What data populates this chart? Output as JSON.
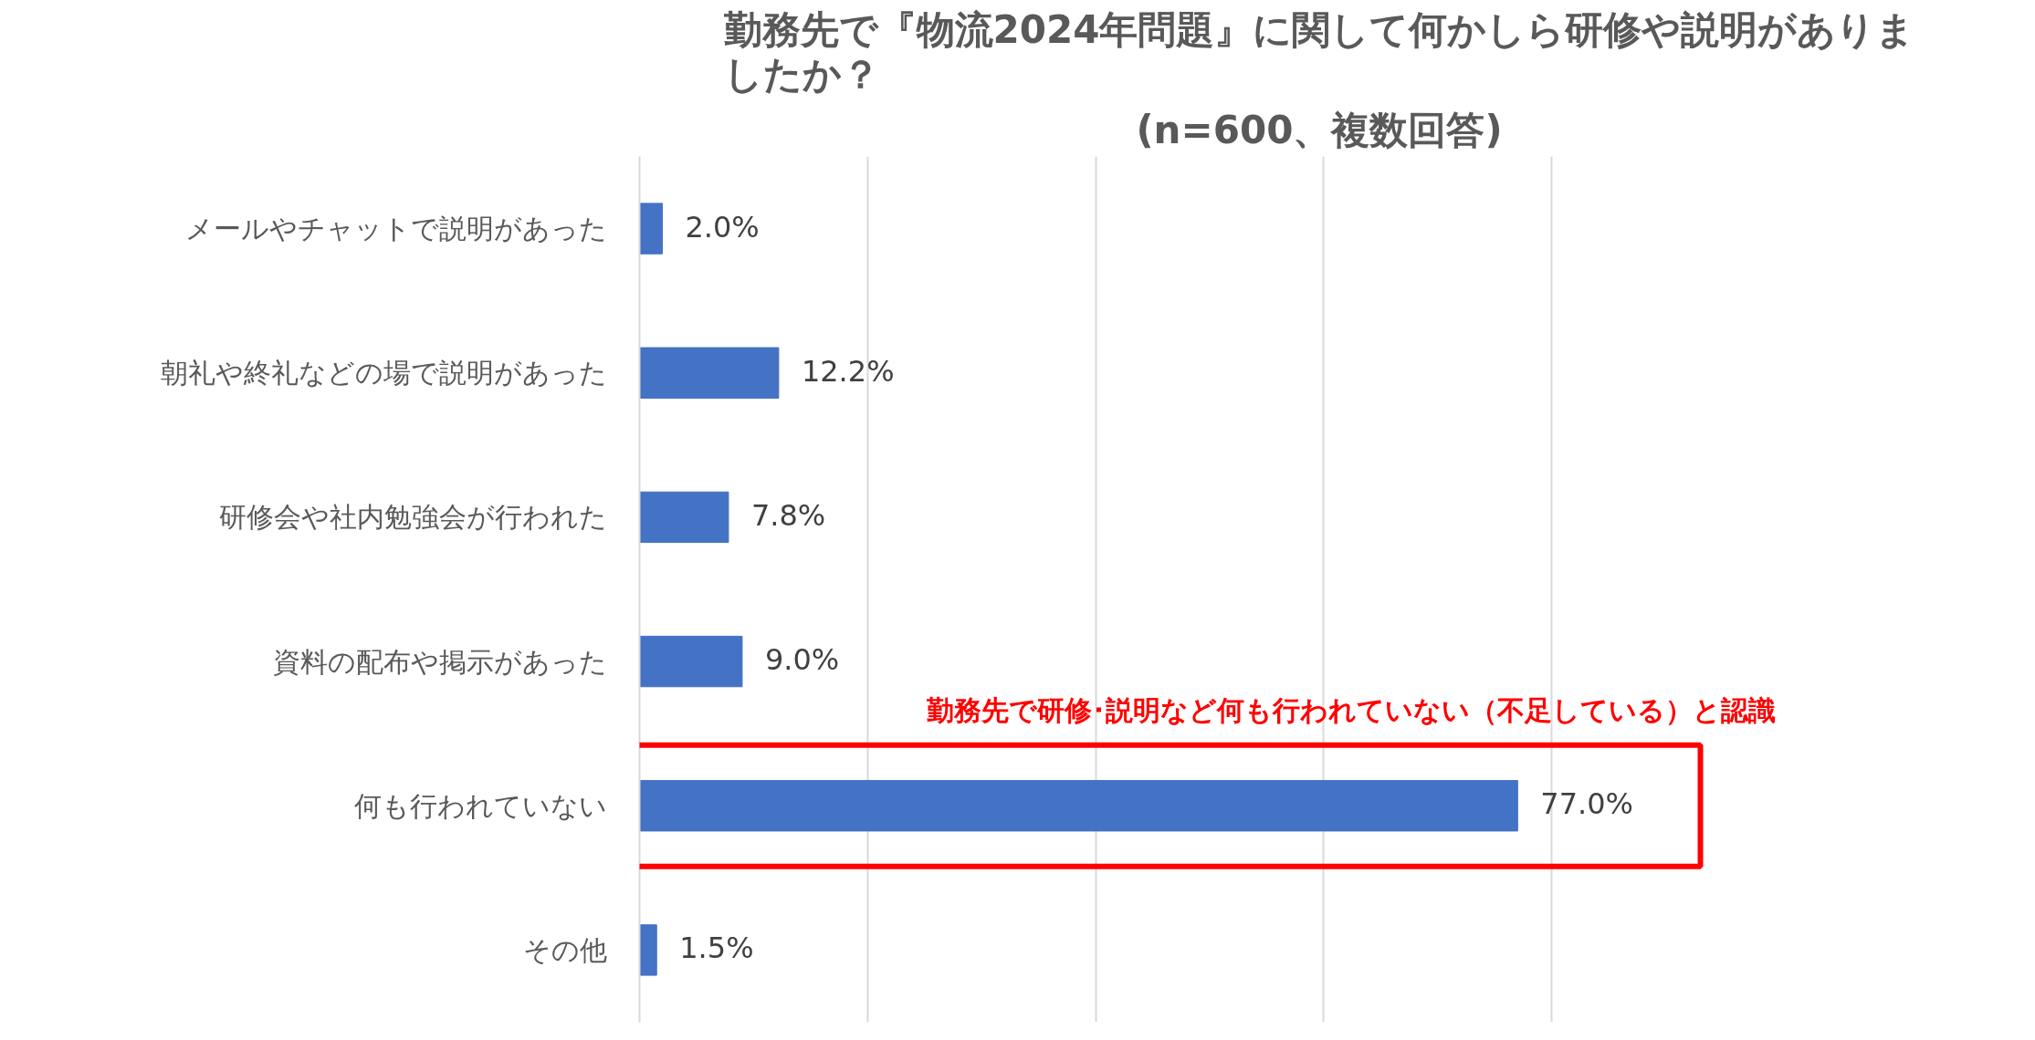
{
  "chart_data": {
    "type": "bar",
    "orientation": "horizontal",
    "title": "勤務先で『物流2024年問題』に関して何かしら研修や説明がありましたか？",
    "subtitle": "(n=600、複数回答)",
    "categories": [
      "メールやチャットで説明があった",
      "朝礼や終礼などの場で説明があった",
      "研修会や社内勉強会が行われた",
      "資料の配布や掲示があった",
      "何も行われていない",
      "その他"
    ],
    "values": [
      2.0,
      12.2,
      7.8,
      9.0,
      77.0,
      1.5
    ],
    "value_labels": [
      "2.0%",
      "12.2%",
      "7.8%",
      "9.0%",
      "77.0%",
      "1.5%"
    ],
    "color": "#4472c4",
    "xticks": [
      {
        "value": 0,
        "label": null
      },
      {
        "value": 20,
        "label": null
      },
      {
        "value": 40,
        "label": null
      },
      {
        "value": 60,
        "label": null
      },
      {
        "value": 80,
        "label": null
      }
    ],
    "tick_labels": "y",
    "grid": "x",
    "annotations": [
      "勤務先で研修･説明など何も行われていない（不足している）と認識"
    ]
  }
}
